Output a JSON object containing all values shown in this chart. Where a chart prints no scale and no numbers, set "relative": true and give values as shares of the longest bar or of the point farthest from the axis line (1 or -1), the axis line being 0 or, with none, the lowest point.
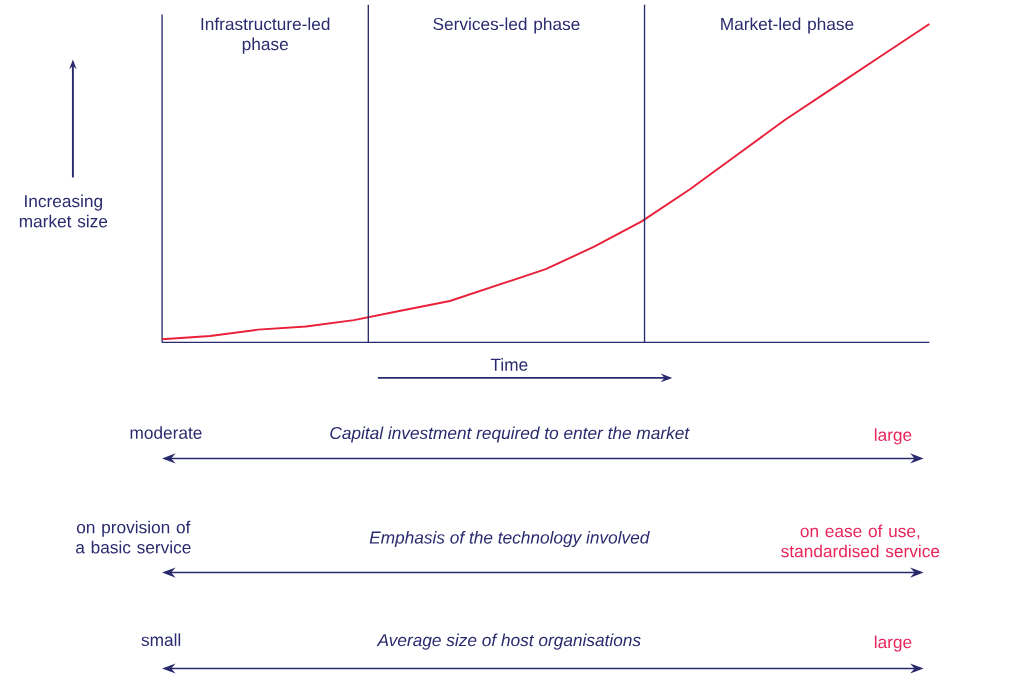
{
  "chart_data": {
    "type": "line",
    "relative": true,
    "categories": [
      null,
      null,
      null,
      null,
      null,
      null,
      null,
      null,
      null,
      null,
      null,
      null,
      null,
      null,
      null,
      null,
      null
    ],
    "series": [
      {
        "color": "#e8203a",
        "values": [
          0.01,
          0.02,
          0.04,
          0.05,
          0.07,
          0.1,
          0.13,
          0.18,
          0.23,
          0.3,
          0.38,
          0.48,
          0.59,
          0.7,
          0.8,
          0.9,
          1.0
        ]
      }
    ],
    "xlabel": "Time",
    "ylabel": "Increasing market size",
    "annotations": [
      "Infrastructure-led phase",
      "Services-led phase",
      "Market-led phase",
      "moderate",
      "Capital investment required to enter the market",
      "large",
      "on provision of a basic service",
      "Emphasis of the technology involved",
      "on ease of use, standardised service",
      "small",
      "Average size of host organisations",
      "large"
    ]
  }
}
